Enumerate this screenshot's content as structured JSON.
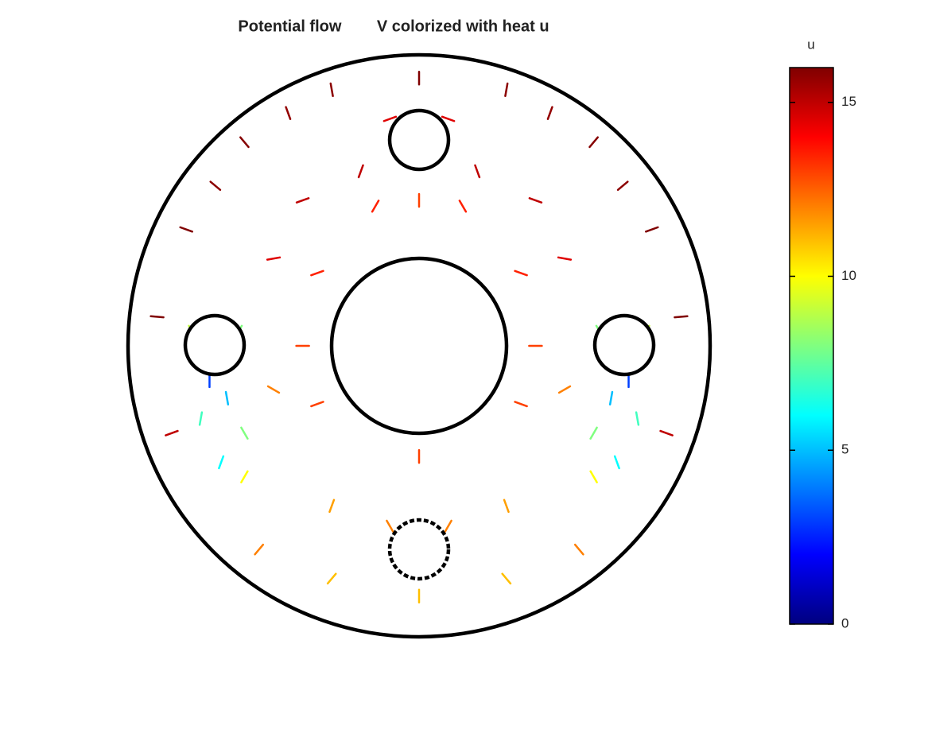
{
  "chart_data": {
    "type": "quiver",
    "title": "Potential flow        V colorized with heat u",
    "colorbar_label": "u",
    "colormap": "jet",
    "clim": [
      0,
      16
    ],
    "cticks": [
      0,
      5,
      10,
      15
    ],
    "xlim": [
      -1,
      1
    ],
    "ylim": [
      -1,
      1
    ],
    "x": [
      0,
      -0.3,
      0.3,
      -0.6,
      0.6,
      -0.8,
      0.8,
      -0.9,
      0.9,
      -0.2,
      0.2,
      0,
      -0.15,
      0.15,
      -0.4,
      0.4,
      -0.5,
      0.5,
      -0.35,
      0.35,
      -0.7,
      0.7,
      -0.45,
      0.45,
      -0.4,
      0.4,
      -0.78,
      0.78,
      -0.62,
      0.62,
      -0.72,
      0.72,
      -0.66,
      0.66,
      -0.75,
      0.75,
      -0.6,
      0.6,
      -0.5,
      0.5,
      -0.35,
      0.35,
      0,
      -0.85,
      0.85,
      -0.6,
      0.6,
      -0.3,
      0.3,
      -0.1,
      0.1,
      0,
      -0.3,
      0.3,
      -0.55,
      0.55,
      -0.68,
      0.68,
      -0.1,
      0.1
    ],
    "y": [
      0.92,
      0.88,
      0.88,
      0.7,
      0.7,
      0.4,
      0.4,
      0.1,
      0.1,
      0.6,
      0.6,
      0.5,
      0.48,
      0.48,
      0.5,
      0.5,
      0.3,
      0.3,
      0.25,
      0.25,
      0.55,
      0.55,
      0.8,
      0.8,
      0,
      0,
      0.05,
      0.05,
      0.05,
      0.05,
      -0.12,
      -0.12,
      -0.18,
      -0.18,
      -0.25,
      -0.25,
      -0.3,
      -0.3,
      -0.15,
      -0.15,
      -0.2,
      -0.2,
      -0.38,
      -0.3,
      -0.3,
      -0.45,
      -0.45,
      -0.55,
      -0.55,
      -0.62,
      -0.62,
      -0.86,
      -0.8,
      -0.8,
      -0.7,
      -0.7,
      -0.4,
      -0.4,
      0.78,
      0.78
    ],
    "values": [
      16,
      15.8,
      15.8,
      15.9,
      15.9,
      16,
      16,
      16,
      16,
      15,
      15,
      13,
      13.5,
      13.5,
      15,
      15,
      14.5,
      14.5,
      13.5,
      13.5,
      15.8,
      15.8,
      15.7,
      15.7,
      13,
      13,
      9,
      9,
      8,
      8,
      3,
      3,
      5,
      5,
      7,
      7,
      8,
      8,
      12,
      12,
      13,
      13,
      13,
      15,
      15,
      10,
      10,
      11.5,
      11.5,
      12,
      12,
      11,
      11,
      11,
      12,
      12,
      6,
      6,
      14.5,
      14.5
    ],
    "angles": [
      90,
      100,
      80,
      130,
      50,
      160,
      20,
      175,
      5,
      250,
      290,
      270,
      240,
      300,
      200,
      340,
      190,
      350,
      200,
      340,
      140,
      40,
      110,
      70,
      180,
      0,
      120,
      60,
      60,
      120,
      270,
      270,
      280,
      260,
      260,
      280,
      300,
      240,
      330,
      210,
      200,
      340,
      270,
      200,
      340,
      240,
      300,
      250,
      290,
      120,
      60,
      270,
      230,
      310,
      230,
      310,
      250,
      290,
      200,
      340
    ]
  }
}
